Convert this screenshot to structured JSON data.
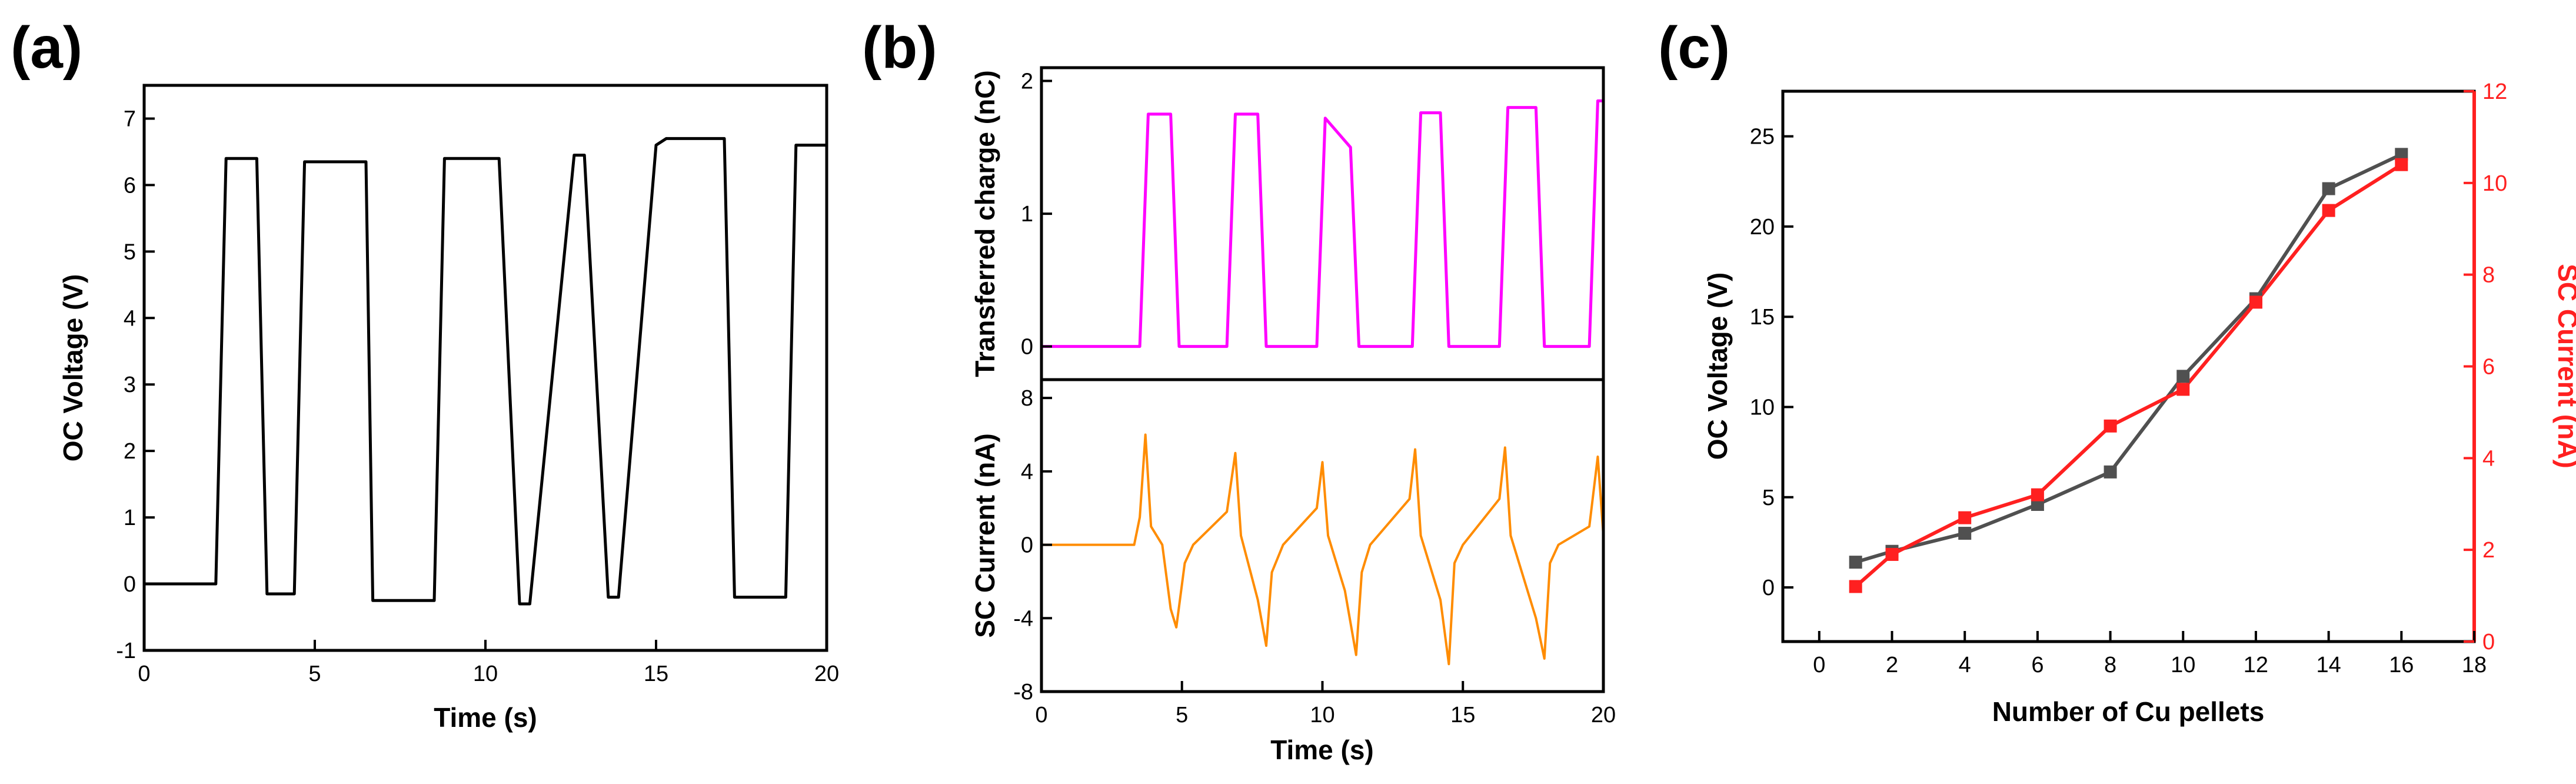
{
  "panel_labels": [
    "(a)",
    "(b)",
    "(c)"
  ],
  "colors": {
    "voltage": "#000000",
    "charge": "#ff00ff",
    "current": "#ff8c00",
    "c_voltage": "#505050",
    "c_current": "#ff2020"
  },
  "chart_data": [
    {
      "id": "a",
      "type": "line",
      "xlabel": "Time (s)",
      "ylabel": "OC Voltage (V)",
      "xlim": [
        0,
        20
      ],
      "ylim": [
        -1,
        7.5
      ],
      "xticks": [
        "0",
        "5",
        "10",
        "15",
        "20"
      ],
      "yticks": [
        "-1",
        "0",
        "1",
        "2",
        "3",
        "4",
        "5",
        "6",
        "7"
      ],
      "series": [
        {
          "name": "OC Voltage",
          "x": [
            0,
            2.1,
            2.4,
            3.3,
            3.6,
            4.4,
            4.7,
            6.5,
            6.7,
            8.5,
            8.8,
            9.2,
            10.2,
            10.4,
            11.0,
            11.3,
            12.6,
            12.9,
            13.6,
            13.9,
            15.0,
            15.3,
            17.0,
            17.3,
            18.8,
            19.1,
            20.0
          ],
          "y": [
            0.0,
            0.0,
            6.4,
            6.4,
            -0.15,
            -0.15,
            6.35,
            6.35,
            -0.25,
            -0.25,
            6.4,
            6.4,
            6.4,
            6.4,
            -0.3,
            -0.3,
            6.45,
            6.45,
            -0.2,
            -0.2,
            6.6,
            6.7,
            6.7,
            -0.2,
            -0.2,
            6.6,
            6.6
          ]
        }
      ]
    },
    {
      "id": "b-top",
      "type": "line",
      "xlabel": "",
      "ylabel": "Transferred charge (nC)",
      "xlim": [
        0,
        20
      ],
      "ylim": [
        -0.25,
        2.1
      ],
      "yticks": [
        "0",
        "1",
        "2"
      ],
      "series": [
        {
          "name": "Transferred charge",
          "x": [
            0,
            3.5,
            3.8,
            4.6,
            4.9,
            6.6,
            6.9,
            7.7,
            8.0,
            9.8,
            10.1,
            11.0,
            11.3,
            13.2,
            13.5,
            14.2,
            14.5,
            16.3,
            16.6,
            17.6,
            17.9,
            19.5,
            19.8,
            20.0
          ],
          "y": [
            0.0,
            0.0,
            1.75,
            1.75,
            0.0,
            0.0,
            1.75,
            1.75,
            0.0,
            0.0,
            1.72,
            1.5,
            0.0,
            0.0,
            1.76,
            1.76,
            0.0,
            0.0,
            1.8,
            1.8,
            0.0,
            0.0,
            1.85,
            1.85
          ]
        }
      ]
    },
    {
      "id": "b-bottom",
      "type": "line",
      "xlabel": "Time (s)",
      "ylabel": "SC Current (nA)",
      "xlim": [
        0,
        20
      ],
      "ylim": [
        -8,
        9
      ],
      "xticks": [
        "0",
        "5",
        "10",
        "15",
        "20"
      ],
      "yticks": [
        "-8",
        "-4",
        "0",
        "4",
        "8"
      ],
      "series": [
        {
          "name": "SC Current",
          "x": [
            0,
            3.3,
            3.5,
            3.7,
            3.9,
            4.3,
            4.6,
            4.8,
            5.1,
            5.4,
            6.6,
            6.9,
            7.1,
            7.7,
            8.0,
            8.2,
            8.6,
            9.8,
            10.0,
            10.2,
            10.8,
            11.2,
            11.4,
            11.7,
            13.1,
            13.3,
            13.5,
            14.2,
            14.5,
            14.7,
            15.0,
            16.3,
            16.5,
            16.7,
            17.6,
            17.9,
            18.1,
            18.4,
            19.5,
            19.8,
            20.0
          ],
          "y": [
            0.0,
            0.0,
            1.5,
            6.0,
            1.0,
            0.0,
            -3.5,
            -4.5,
            -1.0,
            0.0,
            1.8,
            5.0,
            0.5,
            -3.0,
            -5.5,
            -1.5,
            0.0,
            2.0,
            4.5,
            0.5,
            -2.5,
            -6.0,
            -1.5,
            0.0,
            2.5,
            5.2,
            0.5,
            -3.0,
            -6.5,
            -1.0,
            0.0,
            2.5,
            5.3,
            0.5,
            -4.0,
            -6.2,
            -1.0,
            0.0,
            1.0,
            4.8,
            0.5
          ]
        }
      ]
    },
    {
      "id": "c",
      "type": "line",
      "xlabel": "Number of Cu pellets",
      "ylabel": "OC Voltage (V)",
      "y2label": "SC Current (nA)",
      "xlim": [
        -1,
        18
      ],
      "ylim": [
        -3,
        27.5
      ],
      "y2lim": [
        0,
        12
      ],
      "xticks": [
        "0",
        "2",
        "4",
        "6",
        "8",
        "10",
        "12",
        "14",
        "16",
        "18"
      ],
      "yticks": [
        "0",
        "5",
        "10",
        "15",
        "20",
        "25"
      ],
      "y2ticks": [
        "0",
        "2",
        "4",
        "6",
        "8",
        "10",
        "12"
      ],
      "x": [
        1,
        2,
        4,
        6,
        8,
        10,
        12,
        14,
        16
      ],
      "series": [
        {
          "name": "OC Voltage",
          "axis": "left",
          "values": [
            1.4,
            2.0,
            3.0,
            4.6,
            6.4,
            11.7,
            16.0,
            22.1,
            24.0
          ]
        },
        {
          "name": "SC Current",
          "axis": "right",
          "values": [
            1.2,
            1.9,
            2.7,
            3.2,
            4.7,
            5.5,
            7.4,
            9.4,
            10.4
          ]
        }
      ]
    }
  ]
}
